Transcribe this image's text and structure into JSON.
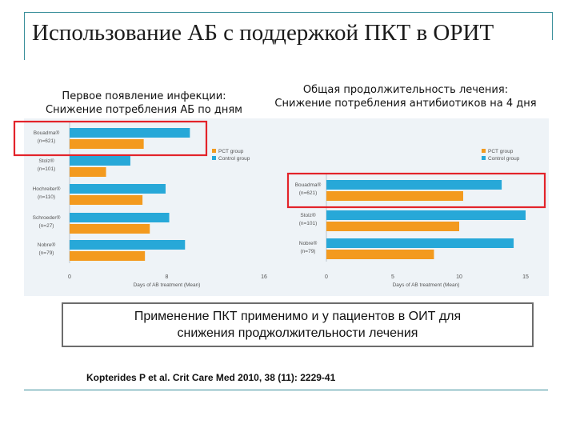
{
  "slide": {
    "title": "Использование АБ с поддержкой ПКТ в ОРИТ",
    "left_caption": [
      "Первое появление инфекции:",
      "Снижение потребления АБ по дням"
    ],
    "right_caption": [
      "Общая продолжительность лечения:",
      "Снижение потребления антибиотиков на 4 дня"
    ],
    "callout": [
      "Применение ПКТ применимо и у пациентов в ОИТ для",
      "снижения проджолжительности лечения"
    ],
    "citation": "Kopterides P et al. Crit Care Med 2010, 38 (11): 2229-41"
  },
  "colors": {
    "pct": "#f39a1e",
    "control": "#27a8d8",
    "highlight": "#e3232a",
    "panel": "#eef3f7",
    "accent_line": "#3a8f9a"
  },
  "chart_data": [
    {
      "type": "bar",
      "orientation": "horizontal",
      "categories": [
        "Bouadma",
        "Stolz",
        "Hochreiter",
        "Schroeder",
        "Nobre"
      ],
      "category_n": [
        "(n=621)",
        "(n=101)",
        "(n=110)",
        "(n=27)",
        "(n=79)"
      ],
      "series": [
        {
          "name": "PCT group",
          "values": [
            6.1,
            3.0,
            6.0,
            6.6,
            6.2
          ]
        },
        {
          "name": "Control group",
          "values": [
            9.9,
            5.0,
            7.9,
            8.2,
            9.5
          ]
        }
      ],
      "xlabel": "Days of AB treatment (Mean)",
      "xlim": [
        0,
        16
      ],
      "xticks": [
        "0",
        "8",
        "16"
      ],
      "legend": "top-right",
      "highlighted_category": "Bouadma"
    },
    {
      "type": "bar",
      "orientation": "horizontal",
      "categories": [
        "Bouadma",
        "Stolz",
        "Nobre"
      ],
      "category_n": [
        "(n=621)",
        "(n=101)",
        "(n=79)"
      ],
      "series": [
        {
          "name": "PCT group",
          "values": [
            10.3,
            10.0,
            8.1
          ]
        },
        {
          "name": "Control group",
          "values": [
            13.2,
            15.0,
            14.1
          ]
        }
      ],
      "xlabel": "Days of AB treatment (Mean)",
      "xlim": [
        0,
        15
      ],
      "xticks": [
        "0",
        "5",
        "10",
        "15"
      ],
      "legend": "top-right",
      "highlighted_category": "Bouadma"
    }
  ]
}
